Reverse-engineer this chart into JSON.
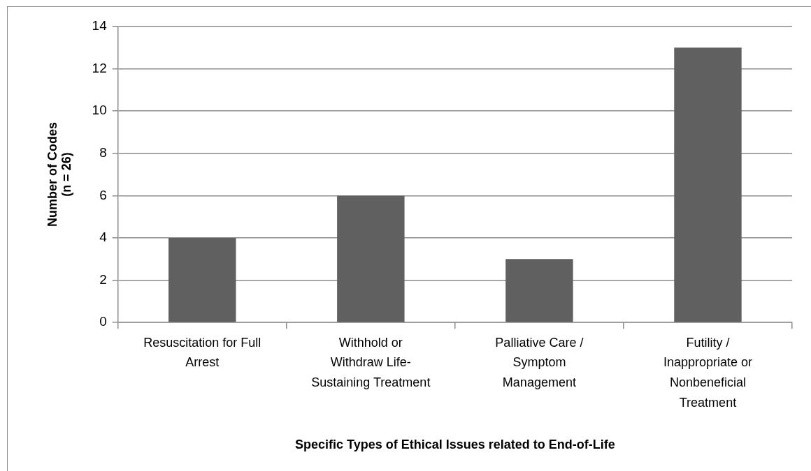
{
  "chart_data": {
    "type": "bar",
    "categories": [
      "Resuscitation for Full\nArrest",
      "Withhold or\nWithdraw Life-\nSustaining Treatment",
      "Palliative Care /\nSymptom\nManagement",
      "Futility /\nInappropriate or\nNonbeneficial\nTreatment"
    ],
    "values": [
      4,
      6,
      3,
      13
    ],
    "color": "#606060",
    "xlabel": "Specific Types of Ethical Issues related to End-of-Life",
    "ylabel": "Number of Codes\n(n = 26)",
    "ylim": [
      0,
      14
    ],
    "yticks": [
      0,
      2,
      4,
      6,
      8,
      10,
      12,
      14
    ],
    "grid": "y"
  }
}
